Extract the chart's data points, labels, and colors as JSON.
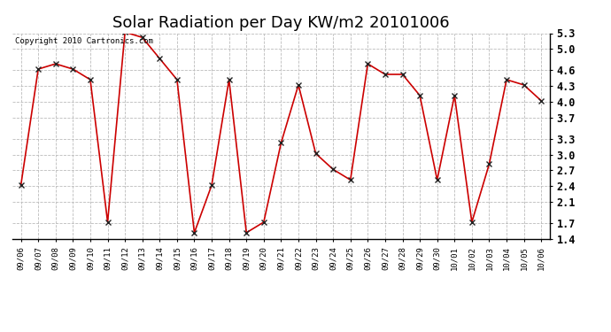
{
  "title": "Solar Radiation per Day KW/m2 20101006",
  "copyright_text": "Copyright 2010 Cartronics.com",
  "dates": [
    "09/06",
    "09/07",
    "09/08",
    "09/09",
    "09/10",
    "09/11",
    "09/12",
    "09/13",
    "09/14",
    "09/15",
    "09/16",
    "09/17",
    "09/18",
    "09/19",
    "09/20",
    "09/21",
    "09/22",
    "09/23",
    "09/24",
    "09/25",
    "09/26",
    "09/27",
    "09/28",
    "09/29",
    "09/30",
    "10/01",
    "10/02",
    "10/03",
    "10/04",
    "10/05",
    "10/06"
  ],
  "values": [
    2.42,
    4.62,
    4.72,
    4.62,
    4.42,
    1.72,
    5.32,
    5.22,
    4.82,
    4.42,
    1.52,
    2.42,
    4.42,
    1.52,
    1.72,
    3.22,
    4.32,
    3.02,
    2.72,
    2.52,
    4.72,
    4.52,
    4.52,
    4.12,
    2.52,
    4.12,
    1.72,
    2.82,
    4.42,
    4.32,
    4.02
  ],
  "line_color": "#cc0000",
  "bg_color": "#ffffff",
  "grid_color": "#bbbbbb",
  "title_fontsize": 13,
  "ylim": [
    1.4,
    5.3
  ],
  "yticks": [
    1.4,
    1.7,
    2.1,
    2.4,
    2.7,
    3.0,
    3.3,
    3.7,
    4.0,
    4.3,
    4.6,
    5.0,
    5.3
  ]
}
